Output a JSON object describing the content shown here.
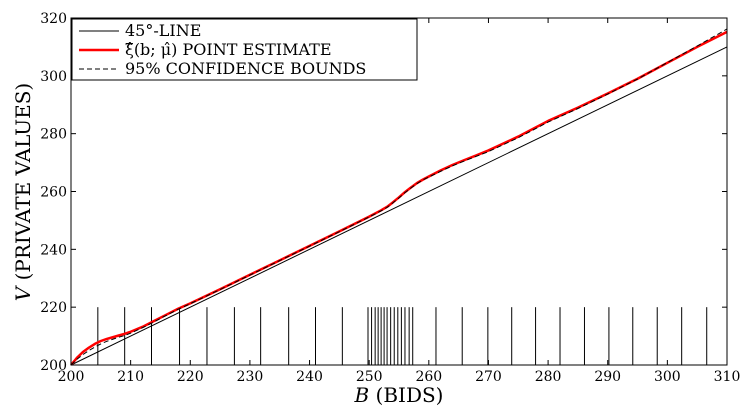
{
  "chart_data": {
    "type": "line",
    "xlabel": "B (BIDS)",
    "xlabel_var": "B",
    "xlabel_text": "(BIDS)",
    "ylabel": "V (PRIVATE VALUES)",
    "ylabel_var": "V",
    "ylabel_text": "(PRIVATE VALUES)",
    "xlim": [
      200,
      310
    ],
    "ylim": [
      200,
      320
    ],
    "xticks": [
      200,
      210,
      220,
      230,
      240,
      250,
      260,
      270,
      280,
      290,
      300,
      310
    ],
    "yticks": [
      200,
      220,
      240,
      260,
      280,
      300,
      320
    ],
    "legend_position": "top-left",
    "grid": false,
    "series": [
      {
        "name": "45°-LINE",
        "color": "#000000",
        "style": "solid",
        "x": [
          200,
          310
        ],
        "y": [
          200,
          310
        ]
      },
      {
        "name": "ξ̂(b; μ̂) POINT ESTIMATE",
        "color": "#ff0000",
        "style": "solid",
        "x": [
          200,
          201,
          202,
          203,
          204,
          205,
          206,
          207,
          208,
          209,
          210,
          212,
          214,
          216,
          218,
          220,
          225,
          230,
          235,
          240,
          245,
          250,
          252,
          253,
          254,
          255,
          256,
          257,
          258,
          259,
          260,
          262,
          264,
          266,
          268,
          270,
          275,
          280,
          285,
          290,
          295,
          300,
          305,
          310
        ],
        "y": [
          200.0,
          202.5,
          204.5,
          206.0,
          207.3,
          208.3,
          209.0,
          209.6,
          210.2,
          210.8,
          211.5,
          213.2,
          215.3,
          217.4,
          219.5,
          221.3,
          226.2,
          231.2,
          236.2,
          241.2,
          246.2,
          251.3,
          253.5,
          254.7,
          256.3,
          258.0,
          259.8,
          261.4,
          262.9,
          264.1,
          265.2,
          267.3,
          269.2,
          270.9,
          272.5,
          274.2,
          279.0,
          284.4,
          289.0,
          293.9,
          299.0,
          304.5,
          310.0,
          315.2
        ]
      },
      {
        "name": "95% CONFIDENCE BOUNDS",
        "color": "#000000",
        "style": "dashed",
        "x": [
          200,
          201,
          202,
          203,
          204,
          205,
          206,
          207,
          208,
          209,
          210,
          212,
          214,
          216,
          218,
          220,
          225,
          230,
          235,
          240,
          245,
          250,
          252,
          253,
          254,
          255,
          256,
          257,
          258,
          259,
          260,
          262,
          264,
          266,
          268,
          270,
          275,
          280,
          285,
          290,
          295,
          300,
          305,
          310
        ],
        "y": [
          200.0,
          202.0,
          203.6,
          205.0,
          206.2,
          207.3,
          208.2,
          208.9,
          209.6,
          210.2,
          211.0,
          212.9,
          215.0,
          217.2,
          219.3,
          221.2,
          226.1,
          231.1,
          236.1,
          241.1,
          246.1,
          251.2,
          253.3,
          254.5,
          256.1,
          257.8,
          259.6,
          261.2,
          262.7,
          264.0,
          265.0,
          267.0,
          268.9,
          270.6,
          272.2,
          273.8,
          278.6,
          284.0,
          288.7,
          293.7,
          298.9,
          304.6,
          310.3,
          316.2
        ]
      }
    ],
    "bid_markers": [
      204.5,
      209,
      213.5,
      218.2,
      222.8,
      227.4,
      231.8,
      236.5,
      241,
      245.5,
      249.8,
      250.4,
      251,
      251.5,
      252,
      252.5,
      253,
      253.6,
      254.2,
      254.8,
      255.4,
      256,
      256.7,
      257.3,
      261.2,
      265.6,
      269.9,
      273.9,
      277.9,
      282,
      286.1,
      290.2,
      294.2,
      298.3,
      302.4,
      306.6
    ],
    "bid_marker_top": 220
  }
}
